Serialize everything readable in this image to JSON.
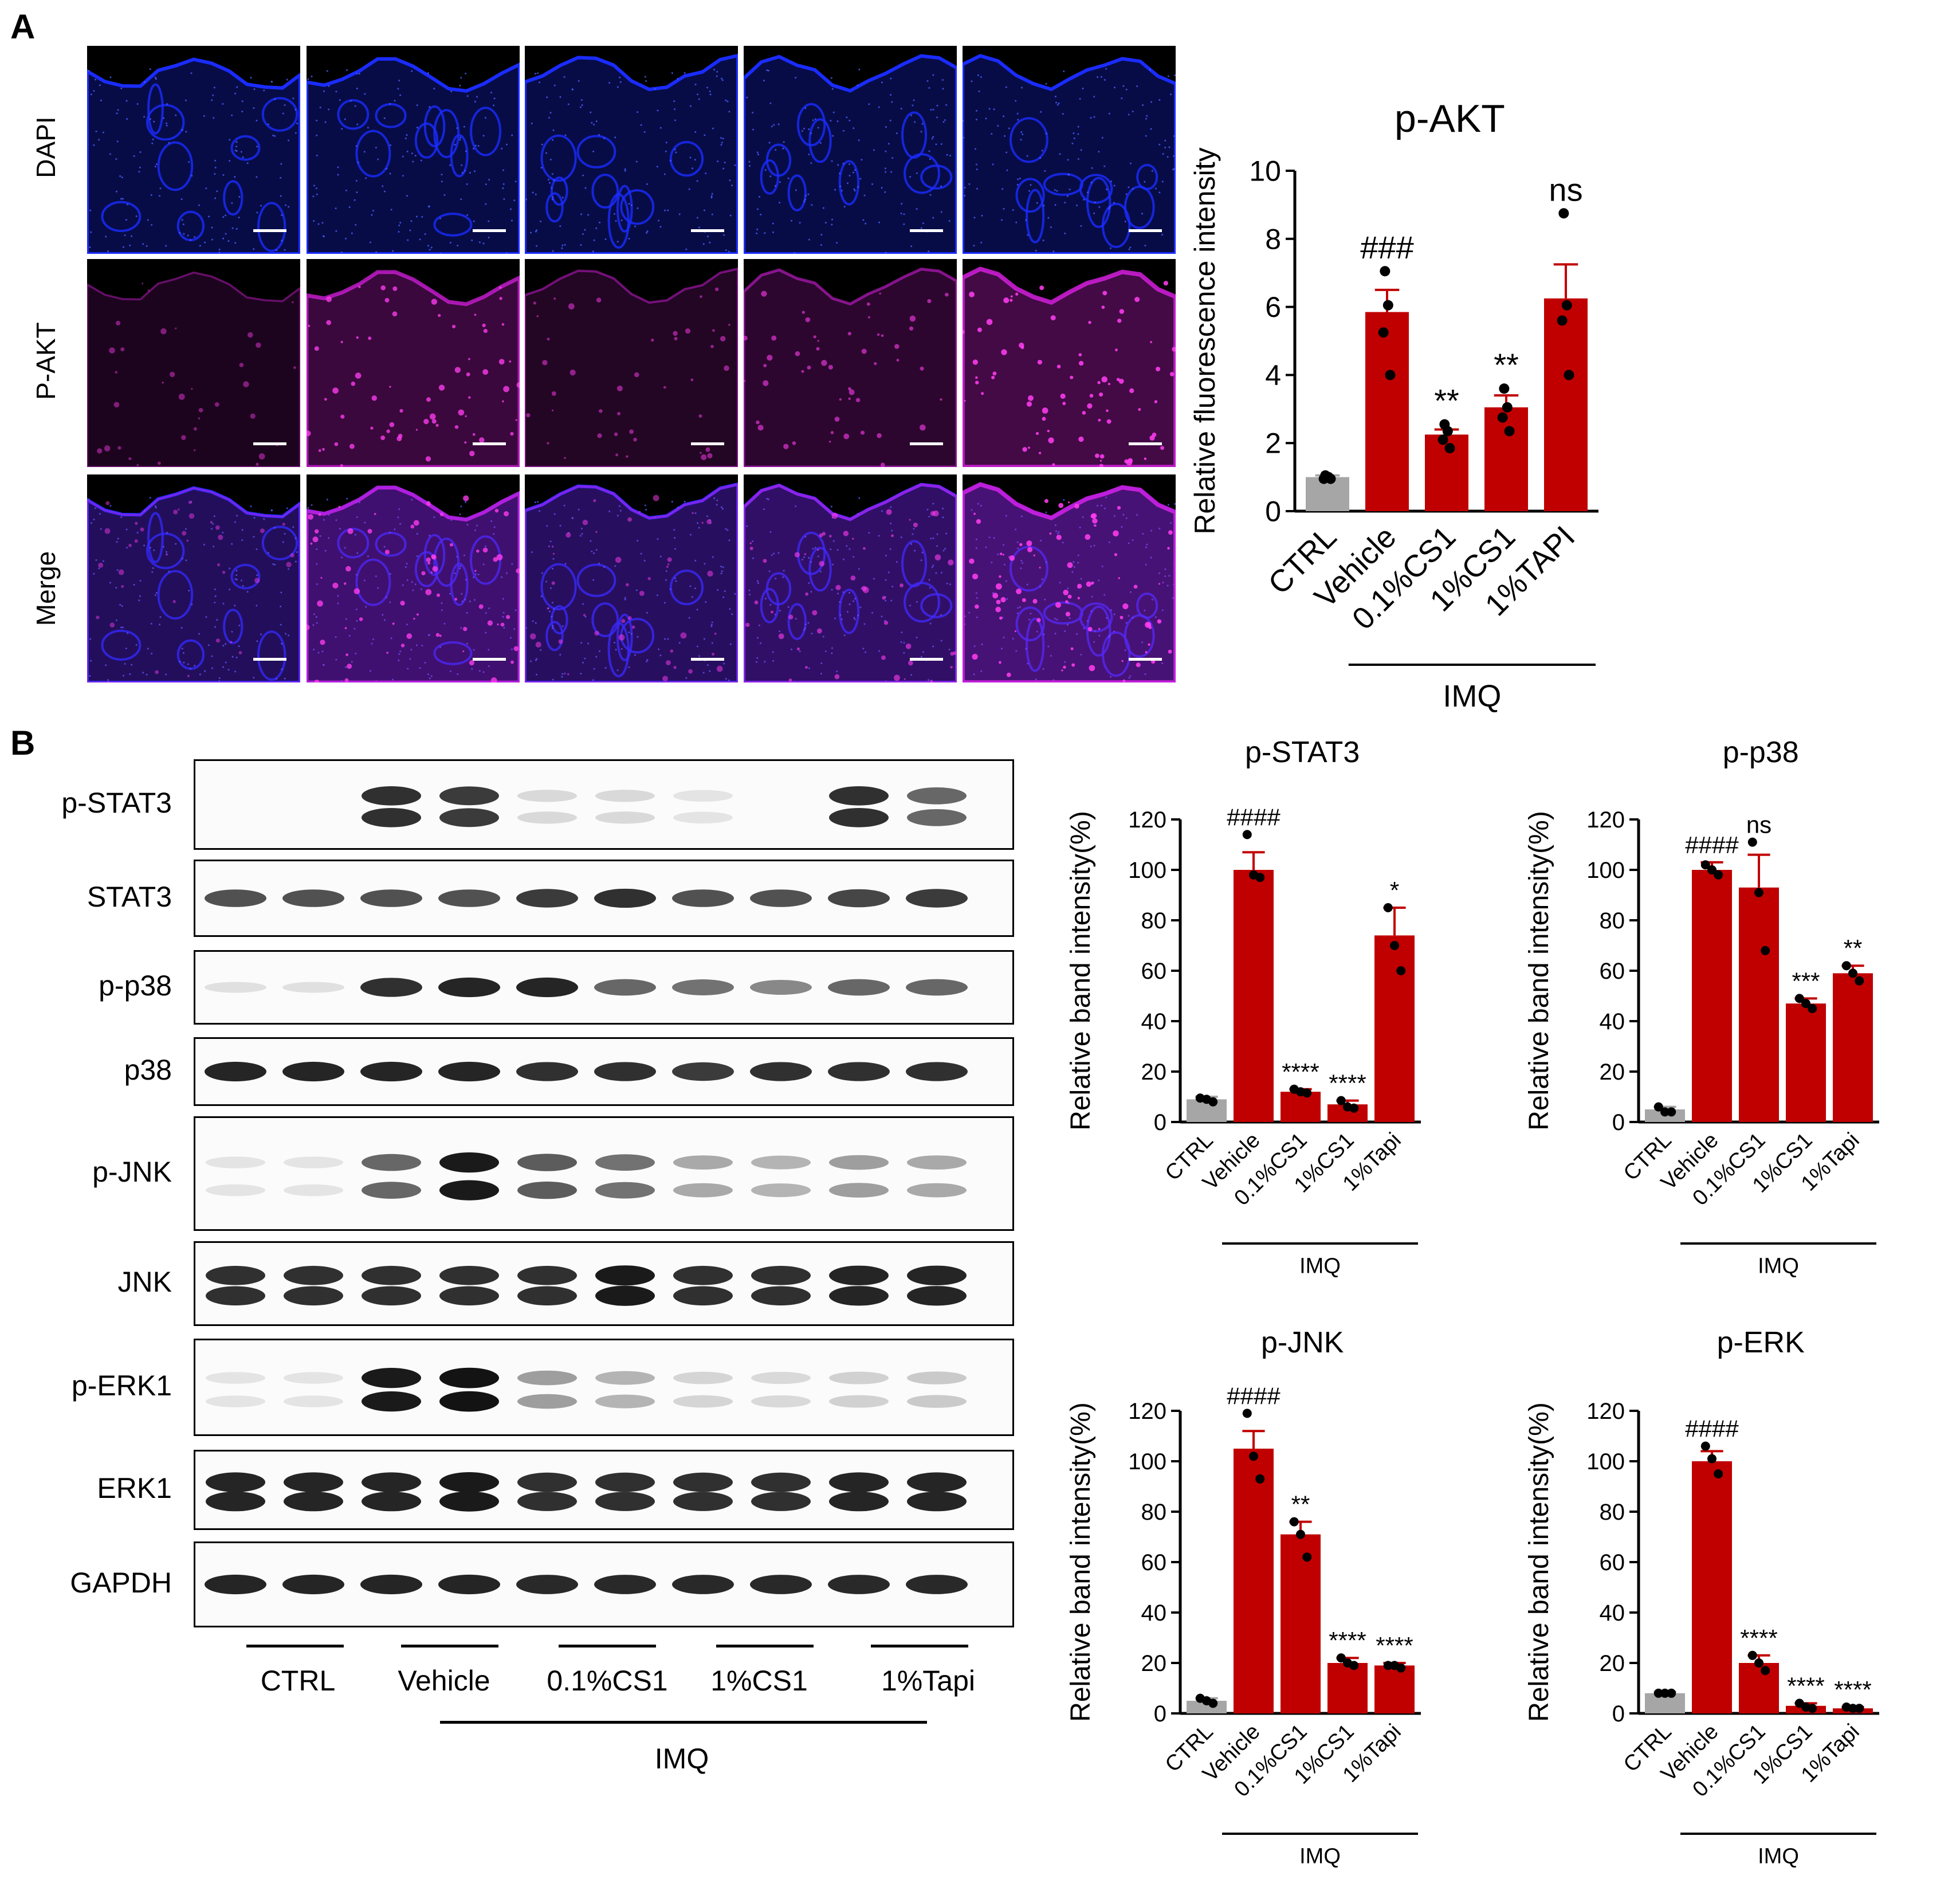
{
  "panels": {
    "a": "A",
    "b": "B"
  },
  "panel_a": {
    "row_labels": [
      "DAPI",
      "P-AKT",
      "Merge"
    ]
  },
  "panel_b": {
    "blot_labels": [
      "p-STAT3",
      "STAT3",
      "p-p38",
      "p38",
      "p-JNK",
      "JNK",
      "p-ERK1",
      "ERK1",
      "GAPDH"
    ],
    "group_labels": [
      "CTRL",
      "Vehicle",
      "0.1%CS1",
      "1%CS1",
      "1%Tapi"
    ],
    "treatment_label": "IMQ"
  },
  "colors": {
    "ctrl_bar": "#a6a6a6",
    "treated_bar": "#c00000",
    "dapi": "#1a2cff",
    "pakt": "#d01ed8"
  },
  "chart_data": [
    {
      "type": "bar",
      "title": "p-AKT",
      "ylabel": "Relative fluorescence intensity",
      "categories": [
        "CTRL",
        "Vehicle",
        "0.1%CS1",
        "1%CS1",
        "1%TAPI"
      ],
      "values": [
        1.0,
        5.85,
        2.25,
        3.05,
        6.25
      ],
      "errors": [
        0.05,
        0.65,
        0.15,
        0.35,
        1.0
      ],
      "points": [
        [
          1.05,
          1.0,
          0.95,
          0.95
        ],
        [
          7.05,
          6.05,
          5.25,
          4.0
        ],
        [
          2.55,
          2.35,
          2.1,
          1.85
        ],
        [
          3.6,
          3.05,
          2.75,
          2.35
        ],
        [
          8.75,
          6.05,
          5.6,
          4.0
        ]
      ],
      "annotations": [
        "",
        "###",
        "**",
        "**",
        "ns"
      ],
      "ylim": [
        0,
        10
      ],
      "yticks": [
        0,
        2,
        4,
        6,
        8,
        10
      ],
      "group_label": "IMQ",
      "group_span": [
        1,
        4
      ]
    },
    {
      "type": "bar",
      "title": "p-STAT3",
      "ylabel": "Relative band intensity(%)",
      "categories": [
        "CTRL",
        "Vehicle",
        "0.1%CS1",
        "1%CS1",
        "1%Tapi"
      ],
      "values": [
        9,
        100,
        12,
        7,
        74
      ],
      "errors": [
        1,
        7,
        1,
        1.5,
        11
      ],
      "points": [
        [
          9.5,
          9,
          8
        ],
        [
          114,
          98,
          97
        ],
        [
          13,
          12,
          11.5
        ],
        [
          8.5,
          6,
          5.5
        ],
        [
          85,
          70,
          60
        ]
      ],
      "annotations": [
        "",
        "####",
        "****",
        "****",
        "*"
      ],
      "ylim": [
        0,
        120
      ],
      "yticks": [
        0,
        20,
        40,
        60,
        80,
        100,
        120
      ],
      "group_label": "IMQ",
      "group_span": [
        1,
        4
      ]
    },
    {
      "type": "bar",
      "title": "p-p38",
      "ylabel": "Relative band intensity(%)",
      "categories": [
        "CTRL",
        "Vehicle",
        "0.1%CS1",
        "1%CS1",
        "1%Tapi"
      ],
      "values": [
        5,
        100,
        93,
        47,
        59
      ],
      "errors": [
        1,
        3,
        13,
        2,
        3
      ],
      "points": [
        [
          6,
          4,
          4
        ],
        [
          102,
          100,
          98
        ],
        [
          111,
          91,
          68
        ],
        [
          49,
          47,
          45
        ],
        [
          62,
          59,
          56
        ]
      ],
      "annotations": [
        "",
        "####",
        "ns",
        "***",
        "**"
      ],
      "ylim": [
        0,
        120
      ],
      "yticks": [
        0,
        20,
        40,
        60,
        80,
        100,
        120
      ],
      "group_label": "IMQ",
      "group_span": [
        1,
        4
      ]
    },
    {
      "type": "bar",
      "title": "p-JNK",
      "ylabel": "Relative band intensity(%)",
      "categories": [
        "CTRL",
        "Vehicle",
        "0.1%CS1",
        "1%CS1",
        "1%Tapi"
      ],
      "values": [
        5,
        105,
        71,
        20,
        19
      ],
      "errors": [
        1,
        7,
        5,
        2,
        1
      ],
      "points": [
        [
          6,
          5,
          4
        ],
        [
          119,
          102,
          93
        ],
        [
          76,
          71,
          62
        ],
        [
          22,
          20,
          19
        ],
        [
          19,
          19,
          18
        ]
      ],
      "annotations": [
        "",
        "####",
        "**",
        "****",
        "****"
      ],
      "ylim": [
        0,
        120
      ],
      "yticks": [
        0,
        20,
        40,
        60,
        80,
        100,
        120
      ],
      "group_label": "IMQ",
      "group_span": [
        1,
        4
      ]
    },
    {
      "type": "bar",
      "title": "p-ERK",
      "ylabel": "Relative band intensity(%)",
      "categories": [
        "CTRL",
        "Vehicle",
        "0.1%CS1",
        "1%CS1",
        "1%Tapi"
      ],
      "values": [
        8,
        100,
        20,
        3,
        2
      ],
      "errors": [
        0.5,
        4,
        3,
        1,
        0.5
      ],
      "points": [
        [
          8,
          8,
          8
        ],
        [
          106,
          101,
          95
        ],
        [
          23,
          20,
          17
        ],
        [
          4,
          2.5,
          2
        ],
        [
          2.5,
          2,
          2
        ]
      ],
      "annotations": [
        "",
        "####",
        "****",
        "****",
        "****"
      ],
      "ylim": [
        0,
        120
      ],
      "yticks": [
        0,
        20,
        40,
        60,
        80,
        100,
        120
      ],
      "group_label": "IMQ",
      "group_span": [
        1,
        4
      ]
    }
  ]
}
